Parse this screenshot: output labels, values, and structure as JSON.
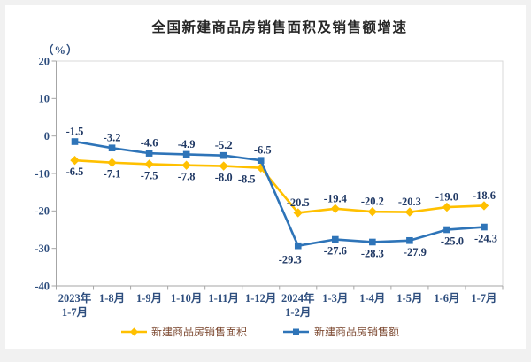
{
  "chart_data": {
    "type": "line",
    "title": "全国新建商品房销售面积及销售额增速",
    "unit_label": "（%）",
    "categories": [
      "2023年\n1-7月",
      "1-8月",
      "1-9月",
      "1-10月",
      "1-11月",
      "1-12月",
      "2024年\n1-2月",
      "1-3月",
      "1-4月",
      "1-5月",
      "1-6月",
      "1-7月"
    ],
    "ylim": [
      -40,
      20
    ],
    "yticks": [
      20,
      10,
      0,
      -10,
      -20,
      -30,
      -40
    ],
    "grid": false,
    "legend_position": "bottom",
    "series": [
      {
        "name": "新建商品房销售面积",
        "color": "#FFC000",
        "marker": "diamond",
        "values": [
          -6.5,
          -7.1,
          -7.5,
          -7.8,
          -8.0,
          -8.5,
          -20.5,
          -19.4,
          -20.2,
          -20.3,
          -19.0,
          -18.6
        ],
        "labels": [
          "-6.5",
          "-7.1",
          "-7.5",
          "-7.8",
          "-8.0",
          "-8.5",
          "-20.5",
          "-19.4",
          "-20.2",
          "-20.3",
          "-19.0",
          "-18.6"
        ],
        "label_side": [
          "below",
          "below",
          "below",
          "below",
          "below",
          "below",
          "above",
          "above",
          "above",
          "above",
          "above",
          "above"
        ],
        "label_dx": [
          0,
          0,
          0,
          0,
          0,
          -16,
          0,
          0,
          0,
          0,
          0,
          0
        ],
        "label_dy": [
          0,
          0,
          0,
          0,
          0,
          0,
          0,
          0,
          0,
          0,
          0,
          0
        ]
      },
      {
        "name": "新建商品房销售额",
        "color": "#2E74B8",
        "marker": "square",
        "values": [
          -1.5,
          -3.2,
          -4.6,
          -4.9,
          -5.2,
          -6.5,
          -29.3,
          -27.6,
          -28.3,
          -27.9,
          -25.0,
          -24.3
        ],
        "labels": [
          "-1.5",
          "-3.2",
          "-4.6",
          "-4.9",
          "-5.2",
          "-6.5",
          "-29.3",
          "-27.6",
          "-28.3",
          "-27.9",
          "-25.0",
          "-24.3"
        ],
        "label_side": [
          "above",
          "above",
          "above",
          "above",
          "above",
          "above",
          "below",
          "below",
          "below",
          "below",
          "below",
          "below"
        ],
        "label_dx": [
          0,
          0,
          0,
          0,
          0,
          2,
          -9,
          0,
          0,
          6,
          6,
          2
        ],
        "label_dy": [
          0,
          0,
          0,
          0,
          0,
          0,
          3,
          0,
          0,
          0,
          0,
          0
        ]
      }
    ],
    "colors": {
      "title": "#262626",
      "axis_text": "#2E4E7E",
      "data_label": "#1F3864",
      "legend_text": "#7E4B33",
      "axis_line": "#a6a6a6",
      "plot_border": "#d9d9d9",
      "page_frame": "#f1f1f1",
      "canvas": "#ffffff"
    }
  }
}
